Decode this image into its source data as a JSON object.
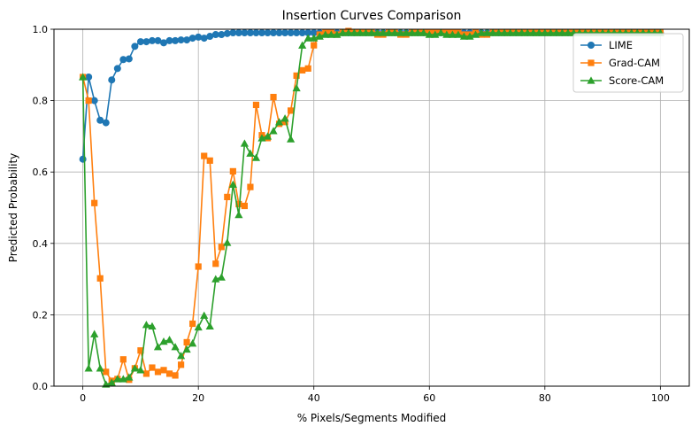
{
  "chart_data": {
    "type": "line",
    "title": "Insertion Curves Comparison",
    "xlabel": "% Pixels/Segments Modified",
    "ylabel": "Predicted Probability",
    "xlim": [
      -5,
      105
    ],
    "ylim": [
      0,
      1.0
    ],
    "xticks": [
      0,
      20,
      40,
      60,
      80,
      100
    ],
    "yticks": [
      0,
      0.2,
      0.4,
      0.6,
      0.8,
      1.0
    ],
    "xtick_labels": [
      "0",
      "20",
      "40",
      "60",
      "80",
      "100"
    ],
    "ytick_labels": [
      "0.0",
      "0.2",
      "0.4",
      "0.6",
      "0.8",
      "1.0"
    ],
    "grid": true,
    "legend_position": "top-right",
    "x": [
      0,
      1,
      2,
      3,
      4,
      5,
      6,
      7,
      8,
      9,
      10,
      11,
      12,
      13,
      14,
      15,
      16,
      17,
      18,
      19,
      20,
      21,
      22,
      23,
      24,
      25,
      26,
      27,
      28,
      29,
      30,
      31,
      32,
      33,
      34,
      35,
      36,
      37,
      38,
      39,
      40,
      41,
      42,
      43,
      44,
      45,
      46,
      47,
      48,
      49,
      50,
      51,
      52,
      53,
      54,
      55,
      56,
      57,
      58,
      59,
      60,
      61,
      62,
      63,
      64,
      65,
      66,
      67,
      68,
      69,
      70,
      71,
      72,
      73,
      74,
      75,
      76,
      77,
      78,
      79,
      80,
      81,
      82,
      83,
      84,
      85,
      86,
      87,
      88,
      89,
      90,
      91,
      92,
      93,
      94,
      95,
      96,
      97,
      98,
      99,
      100
    ],
    "series": [
      {
        "name": "LIME",
        "color": "#1f77b4",
        "marker": "circle",
        "values": [
          0.636,
          0.866,
          0.8,
          0.745,
          0.738,
          0.858,
          0.89,
          0.915,
          0.917,
          0.952,
          0.965,
          0.965,
          0.968,
          0.968,
          0.962,
          0.968,
          0.968,
          0.97,
          0.97,
          0.975,
          0.978,
          0.975,
          0.98,
          0.985,
          0.985,
          0.988,
          0.99,
          0.99,
          0.99,
          0.99,
          0.99,
          0.99,
          0.99,
          0.99,
          0.99,
          0.99,
          0.99,
          0.99,
          0.99,
          0.99,
          0.99,
          0.99,
          0.99,
          0.99,
          0.99,
          0.99,
          0.99,
          0.99,
          0.99,
          0.99,
          0.99,
          0.99,
          0.99,
          0.99,
          0.99,
          0.99,
          0.99,
          0.99,
          0.99,
          0.99,
          0.99,
          0.99,
          0.99,
          0.99,
          0.99,
          0.99,
          0.99,
          0.99,
          0.99,
          0.99,
          0.99,
          0.99,
          0.99,
          0.99,
          0.99,
          0.99,
          0.99,
          0.99,
          0.99,
          0.99,
          0.99,
          0.99,
          0.99,
          0.99,
          0.99,
          0.99,
          0.99,
          0.99,
          0.99,
          0.99,
          0.99,
          0.99,
          0.99,
          0.99,
          0.99,
          0.99,
          0.99,
          0.99,
          0.99,
          0.99,
          0.99
        ]
      },
      {
        "name": "Grad-CAM",
        "color": "#ff7f0e",
        "marker": "square",
        "values": [
          0.866,
          0.8,
          0.513,
          0.302,
          0.04,
          0.015,
          0.02,
          0.075,
          0.018,
          0.05,
          0.1,
          0.035,
          0.052,
          0.04,
          0.045,
          0.035,
          0.03,
          0.06,
          0.123,
          0.175,
          0.335,
          0.645,
          0.632,
          0.343,
          0.39,
          0.53,
          0.602,
          0.51,
          0.505,
          0.558,
          0.788,
          0.703,
          0.695,
          0.81,
          0.735,
          0.74,
          0.772,
          0.87,
          0.885,
          0.89,
          0.955,
          0.985,
          0.99,
          0.99,
          0.985,
          0.99,
          0.995,
          0.99,
          0.99,
          0.99,
          0.99,
          0.985,
          0.985,
          0.99,
          0.99,
          0.985,
          0.985,
          0.99,
          0.99,
          0.99,
          0.99,
          0.99,
          0.99,
          0.99,
          0.99,
          0.99,
          0.985,
          0.985,
          0.99,
          0.985,
          0.985,
          0.99,
          0.99,
          0.99,
          0.99,
          0.99,
          0.99,
          0.99,
          0.99,
          0.99,
          0.99,
          0.99,
          0.99,
          0.99,
          0.99,
          0.99,
          0.99,
          0.99,
          0.99,
          0.99,
          0.99,
          0.99,
          0.99,
          0.99,
          0.99,
          0.99,
          0.99,
          0.99,
          0.99,
          0.99,
          0.99
        ]
      },
      {
        "name": "Score-CAM",
        "color": "#2ca02c",
        "marker": "triangle",
        "values": [
          0.866,
          0.05,
          0.146,
          0.05,
          0.005,
          0.01,
          0.02,
          0.02,
          0.025,
          0.05,
          0.045,
          0.172,
          0.168,
          0.11,
          0.125,
          0.13,
          0.11,
          0.085,
          0.103,
          0.12,
          0.165,
          0.198,
          0.168,
          0.3,
          0.305,
          0.402,
          0.565,
          0.48,
          0.68,
          0.652,
          0.64,
          0.695,
          0.7,
          0.715,
          0.74,
          0.75,
          0.692,
          0.835,
          0.955,
          0.975,
          0.975,
          0.98,
          0.985,
          0.985,
          0.985,
          0.99,
          0.99,
          0.99,
          0.99,
          0.99,
          0.99,
          0.99,
          0.99,
          0.99,
          0.99,
          0.99,
          0.99,
          0.99,
          0.99,
          0.99,
          0.985,
          0.985,
          0.99,
          0.985,
          0.985,
          0.985,
          0.98,
          0.98,
          0.985,
          0.99,
          0.99,
          0.99,
          0.99,
          0.99,
          0.99,
          0.99,
          0.99,
          0.99,
          0.99,
          0.99,
          0.99,
          0.99,
          0.99,
          0.99,
          0.99,
          0.99,
          0.99,
          0.99,
          0.99,
          0.99,
          0.99,
          0.99,
          0.99,
          0.99,
          0.99,
          0.99,
          0.99,
          0.99,
          0.99,
          0.99,
          0.99
        ]
      }
    ]
  }
}
